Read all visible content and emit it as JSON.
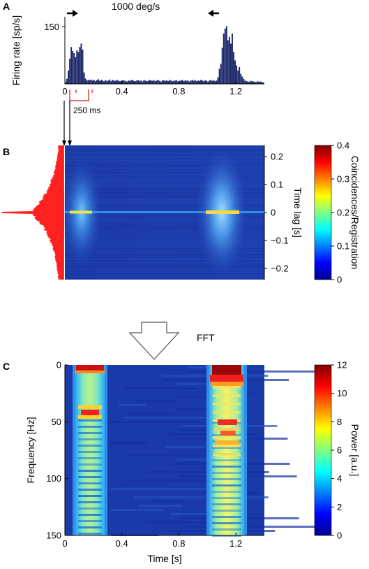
{
  "panels": [
    {
      "label": "A"
    },
    {
      "label": "B"
    },
    {
      "label": "C"
    }
  ],
  "annotations": {
    "speed": "1000 deg/s",
    "duration": "250 ms",
    "fft": "FFT"
  },
  "colors": {
    "histogram": "#1f2a6b",
    "autocorr": "#ff2020",
    "stimulus": "#e02020",
    "colormap": [
      "#00008f",
      "#0000ff",
      "#0080ff",
      "#00ffff",
      "#80ff80",
      "#ffff00",
      "#ff8000",
      "#ff0000",
      "#800000"
    ]
  },
  "chart_data": [
    {
      "type": "bar",
      "panel": "A",
      "ylabel": "Firing rate [sp/s]",
      "xlim": [
        0,
        1.4
      ],
      "ylim": [
        0,
        200
      ],
      "xticks": [
        "0",
        "0.4",
        "0.8",
        "1.2"
      ],
      "yticks": [
        "150"
      ],
      "direction_arrows": [
        "right",
        "left"
      ],
      "stimulus_interval_s": [
        0.04,
        0.29
      ],
      "bin_width_s": 0.01,
      "x": [
        0.0,
        0.01,
        0.02,
        0.03,
        0.04,
        0.05,
        0.06,
        0.07,
        0.08,
        0.09,
        0.1,
        0.11,
        0.12,
        0.13,
        0.14,
        0.15,
        0.16,
        0.17,
        0.18,
        0.19,
        0.2,
        0.21,
        0.22,
        0.23,
        0.24,
        0.25,
        0.26,
        0.27,
        0.28,
        0.29,
        0.3,
        0.31,
        0.32,
        0.33,
        0.34,
        0.35,
        0.36,
        0.37,
        0.38,
        0.39,
        0.4,
        0.41,
        0.42,
        0.43,
        0.44,
        0.45,
        0.46,
        0.47,
        0.48,
        0.49,
        0.5,
        0.51,
        0.52,
        0.53,
        0.54,
        0.55,
        0.56,
        0.57,
        0.58,
        0.59,
        0.6,
        0.61,
        0.62,
        0.63,
        0.64,
        0.65,
        0.66,
        0.67,
        0.68,
        0.69,
        0.7,
        0.71,
        0.72,
        0.73,
        0.74,
        0.75,
        0.76,
        0.77,
        0.78,
        0.79,
        0.8,
        0.81,
        0.82,
        0.83,
        0.84,
        0.85,
        0.86,
        0.87,
        0.88,
        0.89,
        0.9,
        0.91,
        0.92,
        0.93,
        0.94,
        0.95,
        0.96,
        0.97,
        0.98,
        0.99,
        1.0,
        1.01,
        1.02,
        1.03,
        1.04,
        1.05,
        1.06,
        1.07,
        1.08,
        1.09,
        1.1,
        1.11,
        1.12,
        1.13,
        1.14,
        1.15,
        1.16,
        1.17,
        1.18,
        1.19,
        1.2,
        1.21,
        1.22,
        1.23,
        1.24,
        1.25,
        1.26,
        1.27,
        1.28,
        1.29,
        1.3,
        1.31,
        1.32,
        1.33,
        1.34,
        1.35,
        1.36,
        1.37,
        1.38,
        1.39
      ],
      "values": [
        5,
        15,
        40,
        75,
        110,
        98,
        92,
        80,
        100,
        95,
        110,
        120,
        102,
        34,
        16,
        10,
        12,
        11,
        13,
        10,
        12,
        8,
        11,
        14,
        9,
        12,
        10,
        8,
        11,
        9,
        10,
        13,
        8,
        12,
        10,
        9,
        12,
        10,
        8,
        9,
        11,
        10,
        9,
        7,
        10,
        9,
        11,
        12,
        9,
        8,
        10,
        11,
        9,
        10,
        7,
        11,
        10,
        8,
        9,
        12,
        10,
        9,
        11,
        8,
        10,
        12,
        9,
        7,
        11,
        10,
        9,
        11,
        8,
        12,
        10,
        8,
        9,
        10,
        11,
        7,
        9,
        10,
        12,
        8,
        11,
        9,
        10,
        7,
        10,
        12,
        9,
        11,
        8,
        10,
        9,
        12,
        10,
        8,
        11,
        9,
        7,
        10,
        12,
        9,
        11,
        8,
        10,
        20,
        45,
        60,
        108,
        150,
        165,
        172,
        130,
        140,
        120,
        150,
        95,
        70,
        55,
        40,
        50,
        30,
        22,
        15,
        10,
        8,
        7,
        6,
        9,
        8,
        7,
        6,
        5,
        8,
        6,
        7,
        5,
        4
      ]
    },
    {
      "type": "heatmap",
      "panel": "B",
      "ylabel": "Time lag [s]",
      "xlim": [
        0,
        1.4
      ],
      "ylim": [
        -0.24,
        0.24
      ],
      "yticks": [
        "0.2",
        "0.1",
        "0",
        "−0.1",
        "−0.2"
      ],
      "colorbar": {
        "label": "Coincidences/Registration",
        "range": [
          0,
          0.4
        ],
        "ticks": [
          "0.4",
          "0.3",
          "0.2",
          "0.1",
          "0"
        ]
      },
      "activity_windows_s": [
        [
          0.04,
          0.29
        ],
        [
          1.02,
          1.28
        ]
      ],
      "lag0_peak": [
        0.22,
        0.3
      ],
      "side_profile": "autocorrelation histogram (red), peaked at lag 0"
    },
    {
      "type": "heatmap",
      "panel": "C",
      "xlabel": "Time [s]",
      "ylabel": "Frequency [Hz]",
      "xlim": [
        0,
        1.4
      ],
      "ylim": [
        150,
        0
      ],
      "xticks": [
        "0",
        "0.4",
        "0.8",
        "1.2"
      ],
      "yticks": [
        "0",
        "50",
        "100",
        "150"
      ],
      "colorbar": {
        "label": "Power [a.u.]",
        "range": [
          0,
          12
        ],
        "ticks": [
          "12",
          "10",
          "8",
          "6",
          "4",
          "2",
          "0"
        ]
      },
      "activity_windows_s": [
        [
          0.04,
          0.29
        ],
        [
          1.02,
          1.28
        ]
      ],
      "hotspots": [
        {
          "t": 0.15,
          "f": 2,
          "power": 12
        },
        {
          "t": 0.15,
          "f": 42,
          "power": 10
        },
        {
          "t": 1.16,
          "f": 2,
          "power": 12
        },
        {
          "t": 1.16,
          "f": 15,
          "power": 11
        },
        {
          "t": 1.16,
          "f": 50,
          "power": 10
        },
        {
          "t": 1.16,
          "f": 62,
          "power": 9
        }
      ]
    }
  ]
}
